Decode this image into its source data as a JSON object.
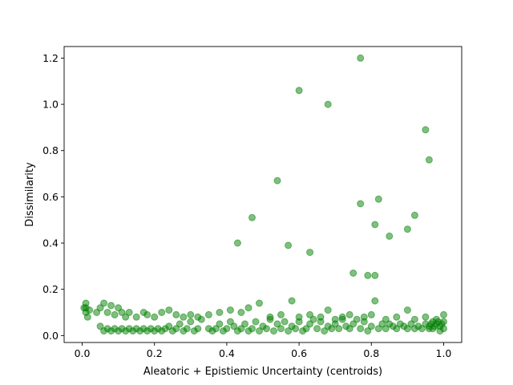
{
  "chart_data": {
    "type": "scatter",
    "title": "",
    "xlabel": "Aleatoric + Epistiemic Uncertainty (centroids)",
    "ylabel": "Dissimilarity",
    "xlim": [
      -0.05,
      1.05
    ],
    "ylim": [
      -0.03,
      1.25
    ],
    "xticks": [
      0.0,
      0.2,
      0.4,
      0.6,
      0.8,
      1.0
    ],
    "xtick_labels": [
      "0.0",
      "0.2",
      "0.4",
      "0.6",
      "0.8",
      "1.0"
    ],
    "yticks": [
      0.0,
      0.2,
      0.4,
      0.6,
      0.8,
      1.0,
      1.2
    ],
    "ytick_labels": [
      "0.0",
      "0.2",
      "0.4",
      "0.6",
      "0.8",
      "1.0",
      "1.2"
    ],
    "grid": false,
    "marker_color": "#008000",
    "marker_alpha": 0.5,
    "series": [
      {
        "points": [
          [
            0.01,
            0.14
          ],
          [
            0.01,
            0.12
          ],
          [
            0.01,
            0.1
          ],
          [
            0.015,
            0.08
          ],
          [
            0.005,
            0.12
          ],
          [
            0.02,
            0.11
          ],
          [
            0.04,
            0.1
          ],
          [
            0.05,
            0.12
          ],
          [
            0.06,
            0.14
          ],
          [
            0.07,
            0.1
          ],
          [
            0.08,
            0.13
          ],
          [
            0.09,
            0.09
          ],
          [
            0.1,
            0.12
          ],
          [
            0.11,
            0.1
          ],
          [
            0.12,
            0.08
          ],
          [
            0.13,
            0.1
          ],
          [
            0.15,
            0.08
          ],
          [
            0.17,
            0.1
          ],
          [
            0.18,
            0.09
          ],
          [
            0.2,
            0.08
          ],
          [
            0.22,
            0.1
          ],
          [
            0.24,
            0.11
          ],
          [
            0.26,
            0.09
          ],
          [
            0.28,
            0.08
          ],
          [
            0.3,
            0.09
          ],
          [
            0.32,
            0.08
          ],
          [
            0.35,
            0.09
          ],
          [
            0.38,
            0.1
          ],
          [
            0.41,
            0.11
          ],
          [
            0.44,
            0.1
          ],
          [
            0.46,
            0.12
          ],
          [
            0.49,
            0.14
          ],
          [
            0.52,
            0.08
          ],
          [
            0.55,
            0.09
          ],
          [
            0.58,
            0.15
          ],
          [
            0.6,
            0.08
          ],
          [
            0.63,
            0.09
          ],
          [
            0.66,
            0.08
          ],
          [
            0.68,
            0.11
          ],
          [
            0.7,
            0.07
          ],
          [
            0.72,
            0.08
          ],
          [
            0.74,
            0.09
          ],
          [
            0.78,
            0.08
          ],
          [
            0.8,
            0.09
          ],
          [
            0.81,
            0.15
          ],
          [
            0.84,
            0.07
          ],
          [
            0.87,
            0.08
          ],
          [
            0.9,
            0.11
          ],
          [
            0.92,
            0.07
          ],
          [
            0.95,
            0.08
          ],
          [
            0.98,
            0.07
          ],
          [
            1.0,
            0.09
          ],
          [
            0.05,
            0.04
          ],
          [
            0.06,
            0.02
          ],
          [
            0.07,
            0.03
          ],
          [
            0.08,
            0.02
          ],
          [
            0.09,
            0.03
          ],
          [
            0.1,
            0.02
          ],
          [
            0.11,
            0.03
          ],
          [
            0.12,
            0.02
          ],
          [
            0.13,
            0.03
          ],
          [
            0.14,
            0.02
          ],
          [
            0.15,
            0.03
          ],
          [
            0.16,
            0.02
          ],
          [
            0.17,
            0.03
          ],
          [
            0.18,
            0.02
          ],
          [
            0.19,
            0.03
          ],
          [
            0.2,
            0.02
          ],
          [
            0.21,
            0.03
          ],
          [
            0.22,
            0.02
          ],
          [
            0.23,
            0.03
          ],
          [
            0.24,
            0.04
          ],
          [
            0.25,
            0.02
          ],
          [
            0.26,
            0.03
          ],
          [
            0.27,
            0.05
          ],
          [
            0.28,
            0.02
          ],
          [
            0.29,
            0.03
          ],
          [
            0.3,
            0.06
          ],
          [
            0.31,
            0.02
          ],
          [
            0.32,
            0.03
          ],
          [
            0.33,
            0.07
          ],
          [
            0.35,
            0.03
          ],
          [
            0.36,
            0.02
          ],
          [
            0.37,
            0.03
          ],
          [
            0.38,
            0.05
          ],
          [
            0.39,
            0.02
          ],
          [
            0.4,
            0.03
          ],
          [
            0.41,
            0.06
          ],
          [
            0.42,
            0.04
          ],
          [
            0.43,
            0.02
          ],
          [
            0.44,
            0.03
          ],
          [
            0.45,
            0.05
          ],
          [
            0.46,
            0.02
          ],
          [
            0.47,
            0.03
          ],
          [
            0.48,
            0.06
          ],
          [
            0.49,
            0.02
          ],
          [
            0.5,
            0.04
          ],
          [
            0.51,
            0.03
          ],
          [
            0.52,
            0.07
          ],
          [
            0.53,
            0.02
          ],
          [
            0.54,
            0.05
          ],
          [
            0.55,
            0.03
          ],
          [
            0.56,
            0.06
          ],
          [
            0.57,
            0.02
          ],
          [
            0.58,
            0.04
          ],
          [
            0.59,
            0.03
          ],
          [
            0.6,
            0.06
          ],
          [
            0.61,
            0.02
          ],
          [
            0.62,
            0.03
          ],
          [
            0.63,
            0.05
          ],
          [
            0.64,
            0.07
          ],
          [
            0.65,
            0.03
          ],
          [
            0.66,
            0.06
          ],
          [
            0.67,
            0.02
          ],
          [
            0.68,
            0.04
          ],
          [
            0.69,
            0.03
          ],
          [
            0.7,
            0.05
          ],
          [
            0.71,
            0.03
          ],
          [
            0.72,
            0.07
          ],
          [
            0.73,
            0.04
          ],
          [
            0.74,
            0.03
          ],
          [
            0.75,
            0.05
          ],
          [
            0.76,
            0.07
          ],
          [
            0.77,
            0.03
          ],
          [
            0.78,
            0.06
          ],
          [
            0.79,
            0.02
          ],
          [
            0.8,
            0.04
          ],
          [
            0.82,
            0.03
          ],
          [
            0.83,
            0.05
          ],
          [
            0.84,
            0.03
          ],
          [
            0.85,
            0.05
          ],
          [
            0.86,
            0.04
          ],
          [
            0.87,
            0.03
          ],
          [
            0.88,
            0.05
          ],
          [
            0.89,
            0.04
          ],
          [
            0.9,
            0.03
          ],
          [
            0.91,
            0.05
          ],
          [
            0.92,
            0.03
          ],
          [
            0.93,
            0.04
          ],
          [
            0.94,
            0.03
          ],
          [
            0.95,
            0.05
          ],
          [
            0.96,
            0.04
          ],
          [
            0.97,
            0.03
          ],
          [
            0.98,
            0.05
          ],
          [
            0.99,
            0.04
          ],
          [
            1.0,
            0.03
          ],
          [
            0.965,
            0.05
          ],
          [
            0.975,
            0.04
          ],
          [
            0.985,
            0.06
          ],
          [
            0.995,
            0.05
          ],
          [
            0.96,
            0.03
          ],
          [
            0.97,
            0.06
          ],
          [
            0.99,
            0.02
          ],
          [
            1.0,
            0.06
          ],
          [
            0.43,
            0.4
          ],
          [
            0.47,
            0.51
          ],
          [
            0.54,
            0.67
          ],
          [
            0.57,
            0.39
          ],
          [
            0.6,
            1.06
          ],
          [
            0.63,
            0.36
          ],
          [
            0.68,
            1.0
          ],
          [
            0.75,
            0.27
          ],
          [
            0.77,
            1.2
          ],
          [
            0.77,
            0.57
          ],
          [
            0.79,
            0.26
          ],
          [
            0.81,
            0.26
          ],
          [
            0.81,
            0.48
          ],
          [
            0.82,
            0.59
          ],
          [
            0.85,
            0.43
          ],
          [
            0.9,
            0.46
          ],
          [
            0.92,
            0.52
          ],
          [
            0.95,
            0.89
          ],
          [
            0.96,
            0.76
          ]
        ]
      }
    ]
  }
}
